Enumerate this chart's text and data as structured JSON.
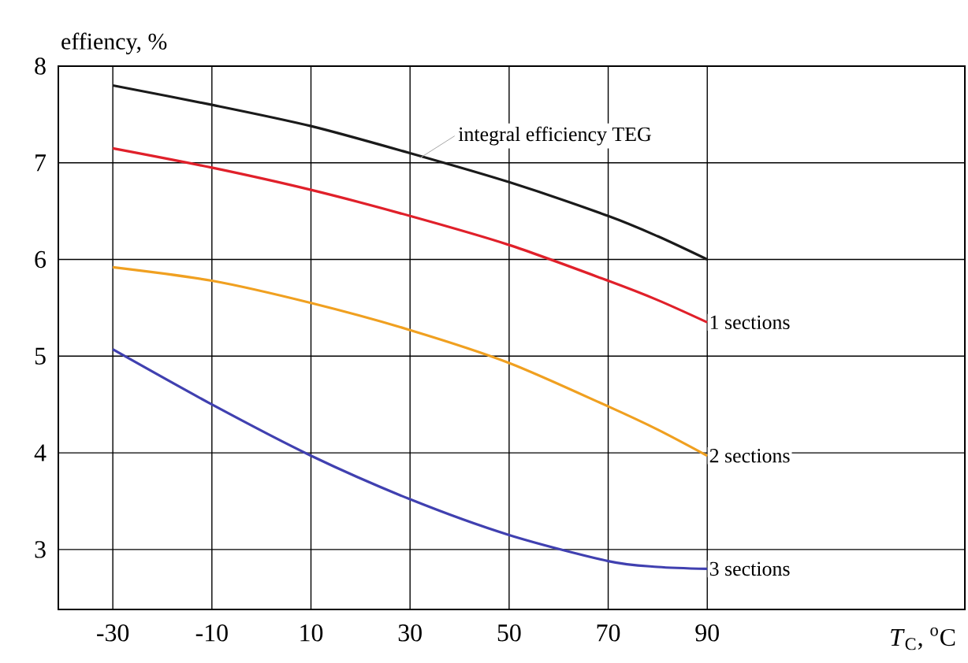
{
  "chart_data": {
    "type": "line",
    "xlabel": "*T*$_{C}$, $^{o}$C",
    "ylabel": "effiency, %",
    "x": [
      -30,
      -10,
      10,
      30,
      50,
      70,
      80,
      90
    ],
    "series": [
      {
        "name": "integral efficiency TEG",
        "color": "#1a1a1a",
        "values": [
          7.8,
          7.6,
          7.38,
          7.1,
          6.8,
          6.45,
          6.24,
          6.0
        ]
      },
      {
        "name": "1 sections",
        "color": "#e0202a",
        "values": [
          7.15,
          6.95,
          6.72,
          6.45,
          6.15,
          5.78,
          5.58,
          5.35
        ]
      },
      {
        "name": "2 sections",
        "color": "#f0a020",
        "values": [
          5.92,
          5.78,
          5.55,
          5.27,
          4.93,
          4.48,
          4.24,
          3.97
        ]
      },
      {
        "name": "3 sections",
        "color": "#4040b0",
        "values": [
          5.07,
          4.5,
          3.97,
          3.52,
          3.15,
          2.88,
          2.82,
          2.8
        ]
      }
    ],
    "xlim": [
      -41,
      142
    ],
    "ylim": [
      2.38,
      8
    ],
    "xticks": [
      -30,
      -10,
      10,
      30,
      50,
      70,
      90
    ],
    "yticks": [
      3,
      4,
      5,
      6,
      7,
      8
    ],
    "grid": true,
    "marker": "none",
    "line_style": "solid"
  }
}
